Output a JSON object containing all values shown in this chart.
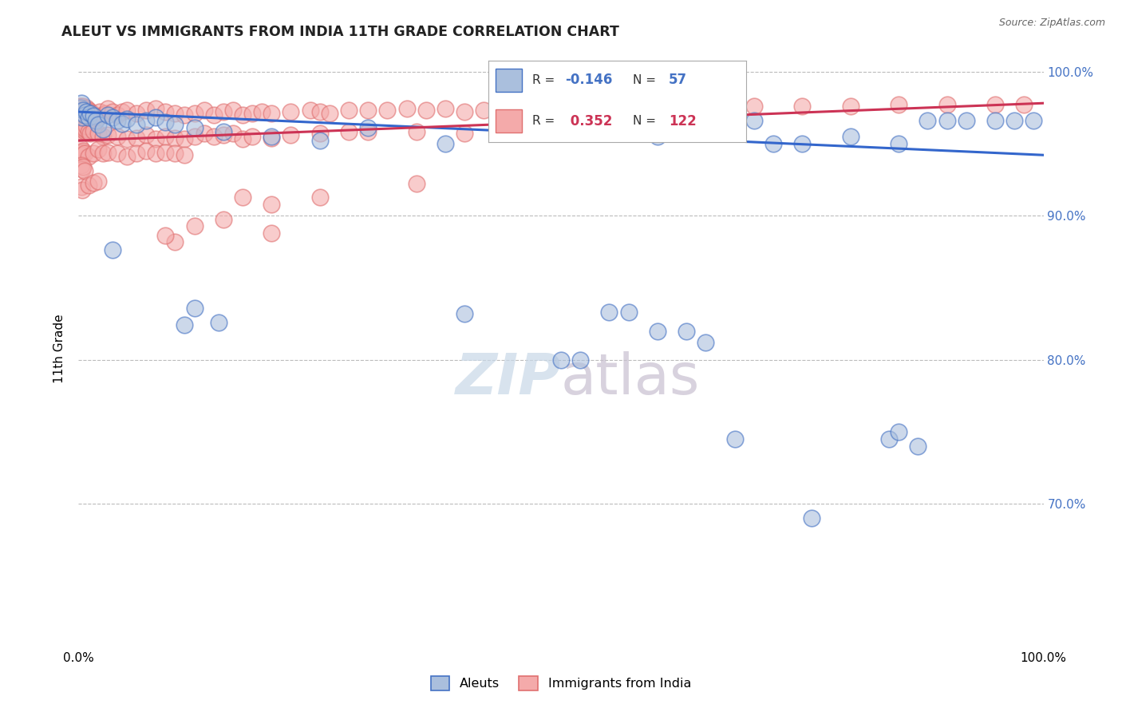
{
  "title": "ALEUT VS IMMIGRANTS FROM INDIA 11TH GRADE CORRELATION CHART",
  "source": "Source: ZipAtlas.com",
  "ylabel": "11th Grade",
  "xlim": [
    0.0,
    1.0
  ],
  "ylim": [
    0.6,
    1.015
  ],
  "grid_yticks": [
    0.7,
    0.8,
    0.9,
    1.0
  ],
  "right_yticklabels": [
    "70.0%",
    "80.0%",
    "90.0%",
    "100.0%"
  ],
  "grid_color": "#bbbbbb",
  "background_color": "#ffffff",
  "aleut_fill": "#aabfdd",
  "aleut_edge": "#4472c4",
  "india_fill": "#f4aaaa",
  "india_edge": "#e07070",
  "aleut_line_color": "#3366cc",
  "india_line_color": "#cc3355",
  "aleut_R": -0.146,
  "aleut_N": 57,
  "india_R": 0.352,
  "india_N": 122,
  "aleut_trend_y0": 0.972,
  "aleut_trend_y1": 0.942,
  "india_trend_y0": 0.952,
  "india_trend_y1": 0.978,
  "aleut_scatter": [
    [
      0.002,
      0.975
    ],
    [
      0.003,
      0.978
    ],
    [
      0.004,
      0.968
    ],
    [
      0.005,
      0.973
    ],
    [
      0.006,
      0.97
    ],
    [
      0.008,
      0.972
    ],
    [
      0.01,
      0.968
    ],
    [
      0.012,
      0.971
    ],
    [
      0.015,
      0.969
    ],
    [
      0.018,
      0.966
    ],
    [
      0.02,
      0.963
    ],
    [
      0.025,
      0.96
    ],
    [
      0.03,
      0.97
    ],
    [
      0.035,
      0.968
    ],
    [
      0.04,
      0.966
    ],
    [
      0.045,
      0.964
    ],
    [
      0.05,
      0.967
    ],
    [
      0.06,
      0.963
    ],
    [
      0.07,
      0.966
    ],
    [
      0.08,
      0.968
    ],
    [
      0.09,
      0.965
    ],
    [
      0.1,
      0.963
    ],
    [
      0.12,
      0.961
    ],
    [
      0.15,
      0.958
    ],
    [
      0.2,
      0.955
    ],
    [
      0.25,
      0.952
    ],
    [
      0.3,
      0.961
    ],
    [
      0.38,
      0.95
    ],
    [
      0.45,
      0.957
    ],
    [
      0.5,
      0.96
    ],
    [
      0.6,
      0.955
    ],
    [
      0.62,
      0.957
    ],
    [
      0.7,
      0.966
    ],
    [
      0.72,
      0.95
    ],
    [
      0.75,
      0.95
    ],
    [
      0.8,
      0.955
    ],
    [
      0.85,
      0.95
    ],
    [
      0.88,
      0.966
    ],
    [
      0.9,
      0.966
    ],
    [
      0.92,
      0.966
    ],
    [
      0.95,
      0.966
    ],
    [
      0.97,
      0.966
    ],
    [
      0.99,
      0.966
    ],
    [
      0.035,
      0.876
    ],
    [
      0.11,
      0.824
    ],
    [
      0.12,
      0.836
    ],
    [
      0.145,
      0.826
    ],
    [
      0.55,
      0.833
    ],
    [
      0.57,
      0.833
    ],
    [
      0.65,
      0.812
    ],
    [
      0.6,
      0.82
    ],
    [
      0.4,
      0.832
    ],
    [
      0.5,
      0.8
    ],
    [
      0.52,
      0.8
    ],
    [
      0.63,
      0.82
    ],
    [
      0.68,
      0.745
    ],
    [
      0.84,
      0.745
    ],
    [
      0.76,
      0.69
    ],
    [
      0.87,
      0.74
    ],
    [
      0.85,
      0.75
    ]
  ],
  "india_scatter": [
    [
      0.001,
      0.976
    ],
    [
      0.002,
      0.975
    ],
    [
      0.003,
      0.974
    ],
    [
      0.004,
      0.973
    ],
    [
      0.005,
      0.976
    ],
    [
      0.006,
      0.974
    ],
    [
      0.007,
      0.972
    ],
    [
      0.008,
      0.975
    ],
    [
      0.009,
      0.971
    ],
    [
      0.01,
      0.973
    ],
    [
      0.012,
      0.972
    ],
    [
      0.014,
      0.971
    ],
    [
      0.016,
      0.97
    ],
    [
      0.018,
      0.969
    ],
    [
      0.02,
      0.968
    ],
    [
      0.022,
      0.972
    ],
    [
      0.025,
      0.97
    ],
    [
      0.028,
      0.971
    ],
    [
      0.03,
      0.974
    ],
    [
      0.035,
      0.972
    ],
    [
      0.04,
      0.97
    ],
    [
      0.045,
      0.972
    ],
    [
      0.05,
      0.973
    ],
    [
      0.06,
      0.971
    ],
    [
      0.07,
      0.973
    ],
    [
      0.08,
      0.974
    ],
    [
      0.09,
      0.972
    ],
    [
      0.1,
      0.971
    ],
    [
      0.11,
      0.97
    ],
    [
      0.12,
      0.971
    ],
    [
      0.13,
      0.973
    ],
    [
      0.14,
      0.97
    ],
    [
      0.15,
      0.972
    ],
    [
      0.16,
      0.973
    ],
    [
      0.17,
      0.97
    ],
    [
      0.18,
      0.971
    ],
    [
      0.19,
      0.972
    ],
    [
      0.2,
      0.971
    ],
    [
      0.22,
      0.972
    ],
    [
      0.24,
      0.973
    ],
    [
      0.25,
      0.972
    ],
    [
      0.26,
      0.971
    ],
    [
      0.28,
      0.973
    ],
    [
      0.3,
      0.973
    ],
    [
      0.32,
      0.973
    ],
    [
      0.34,
      0.974
    ],
    [
      0.36,
      0.973
    ],
    [
      0.38,
      0.974
    ],
    [
      0.4,
      0.972
    ],
    [
      0.42,
      0.973
    ],
    [
      0.44,
      0.971
    ],
    [
      0.46,
      0.974
    ],
    [
      0.48,
      0.974
    ],
    [
      0.5,
      0.974
    ],
    [
      0.55,
      0.975
    ],
    [
      0.6,
      0.975
    ],
    [
      0.65,
      0.976
    ],
    [
      0.7,
      0.976
    ],
    [
      0.75,
      0.976
    ],
    [
      0.8,
      0.976
    ],
    [
      0.85,
      0.977
    ],
    [
      0.9,
      0.977
    ],
    [
      0.95,
      0.977
    ],
    [
      0.98,
      0.977
    ],
    [
      0.002,
      0.963
    ],
    [
      0.003,
      0.96
    ],
    [
      0.004,
      0.958
    ],
    [
      0.005,
      0.961
    ],
    [
      0.006,
      0.959
    ],
    [
      0.007,
      0.96
    ],
    [
      0.008,
      0.962
    ],
    [
      0.01,
      0.958
    ],
    [
      0.012,
      0.957
    ],
    [
      0.015,
      0.959
    ],
    [
      0.02,
      0.957
    ],
    [
      0.025,
      0.955
    ],
    [
      0.03,
      0.956
    ],
    [
      0.04,
      0.955
    ],
    [
      0.05,
      0.953
    ],
    [
      0.06,
      0.954
    ],
    [
      0.07,
      0.956
    ],
    [
      0.08,
      0.953
    ],
    [
      0.09,
      0.955
    ],
    [
      0.1,
      0.954
    ],
    [
      0.11,
      0.953
    ],
    [
      0.12,
      0.955
    ],
    [
      0.13,
      0.957
    ],
    [
      0.14,
      0.955
    ],
    [
      0.15,
      0.956
    ],
    [
      0.16,
      0.957
    ],
    [
      0.17,
      0.953
    ],
    [
      0.18,
      0.955
    ],
    [
      0.2,
      0.954
    ],
    [
      0.22,
      0.956
    ],
    [
      0.25,
      0.957
    ],
    [
      0.28,
      0.958
    ],
    [
      0.3,
      0.958
    ],
    [
      0.35,
      0.958
    ],
    [
      0.4,
      0.957
    ],
    [
      0.002,
      0.947
    ],
    [
      0.003,
      0.944
    ],
    [
      0.004,
      0.942
    ],
    [
      0.005,
      0.945
    ],
    [
      0.006,
      0.943
    ],
    [
      0.01,
      0.941
    ],
    [
      0.015,
      0.943
    ],
    [
      0.02,
      0.946
    ],
    [
      0.025,
      0.943
    ],
    [
      0.03,
      0.944
    ],
    [
      0.04,
      0.943
    ],
    [
      0.05,
      0.941
    ],
    [
      0.06,
      0.943
    ],
    [
      0.07,
      0.945
    ],
    [
      0.08,
      0.943
    ],
    [
      0.09,
      0.944
    ],
    [
      0.1,
      0.943
    ],
    [
      0.11,
      0.942
    ],
    [
      0.003,
      0.935
    ],
    [
      0.004,
      0.932
    ],
    [
      0.005,
      0.934
    ],
    [
      0.006,
      0.931
    ],
    [
      0.1,
      0.882
    ],
    [
      0.12,
      0.893
    ],
    [
      0.15,
      0.897
    ],
    [
      0.17,
      0.913
    ],
    [
      0.2,
      0.908
    ],
    [
      0.25,
      0.913
    ],
    [
      0.35,
      0.922
    ],
    [
      0.2,
      0.888
    ],
    [
      0.09,
      0.886
    ],
    [
      0.003,
      0.92
    ],
    [
      0.004,
      0.918
    ],
    [
      0.01,
      0.921
    ],
    [
      0.015,
      0.923
    ],
    [
      0.02,
      0.924
    ]
  ]
}
